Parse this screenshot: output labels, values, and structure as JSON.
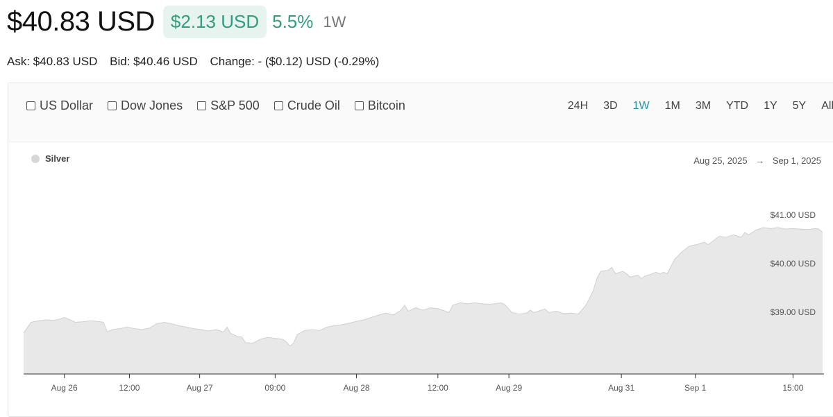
{
  "header": {
    "price": "$40.83 USD",
    "change_value": "$2.13 USD",
    "change_percent": "5.5%",
    "period": "1W"
  },
  "quote": {
    "ask": "Ask: $40.83 USD",
    "bid": "Bid: $40.46 USD",
    "change": "Change: - ($0.12) USD (-0.29%)"
  },
  "compare": [
    "US Dollar",
    "Dow Jones",
    "S&P 500",
    "Crude Oil",
    "Bitcoin"
  ],
  "ranges": [
    "24H",
    "3D",
    "1W",
    "1M",
    "3M",
    "YTD",
    "1Y",
    "5Y",
    "All"
  ],
  "active_range": "1W",
  "legend": {
    "label": "Silver"
  },
  "date_range": {
    "start": "Aug 25, 2025",
    "arrow": "→",
    "end": "Sep 1, 2025"
  },
  "colors": {
    "accent": "#2f9e7d",
    "pill_bg": "#e7f3ef",
    "active_range": "#2a8fa8",
    "area_fill": "#e8e8e8",
    "area_stroke": "#d0d0d0"
  },
  "chart_data": {
    "type": "area",
    "series": [
      {
        "name": "Silver",
        "points": [
          [
            0,
            38.73
          ],
          [
            0.01,
            38.95
          ],
          [
            0.02,
            38.98
          ],
          [
            0.03,
            39.0
          ],
          [
            0.04,
            38.99
          ],
          [
            0.05,
            39.02
          ],
          [
            0.055,
            39.05
          ],
          [
            0.06,
            39.02
          ],
          [
            0.07,
            38.95
          ],
          [
            0.08,
            38.96
          ],
          [
            0.09,
            38.98
          ],
          [
            0.1,
            38.97
          ],
          [
            0.108,
            38.95
          ],
          [
            0.113,
            38.75
          ],
          [
            0.12,
            38.8
          ],
          [
            0.13,
            38.82
          ],
          [
            0.14,
            38.85
          ],
          [
            0.15,
            38.82
          ],
          [
            0.16,
            38.8
          ],
          [
            0.17,
            38.83
          ],
          [
            0.18,
            38.92
          ],
          [
            0.19,
            38.95
          ],
          [
            0.2,
            38.92
          ],
          [
            0.21,
            38.88
          ],
          [
            0.22,
            38.85
          ],
          [
            0.23,
            38.82
          ],
          [
            0.24,
            38.8
          ],
          [
            0.25,
            38.77
          ],
          [
            0.26,
            38.8
          ],
          [
            0.27,
            38.75
          ],
          [
            0.275,
            38.85
          ],
          [
            0.28,
            38.72
          ],
          [
            0.29,
            38.65
          ],
          [
            0.295,
            38.65
          ],
          [
            0.3,
            38.53
          ],
          [
            0.31,
            38.52
          ],
          [
            0.32,
            38.6
          ],
          [
            0.33,
            38.64
          ],
          [
            0.34,
            38.62
          ],
          [
            0.35,
            38.6
          ],
          [
            0.355,
            38.55
          ],
          [
            0.36,
            38.46
          ],
          [
            0.365,
            38.52
          ],
          [
            0.37,
            38.7
          ],
          [
            0.38,
            38.78
          ],
          [
            0.39,
            38.8
          ],
          [
            0.4,
            38.78
          ],
          [
            0.41,
            38.85
          ],
          [
            0.42,
            38.88
          ],
          [
            0.43,
            38.9
          ],
          [
            0.44,
            38.93
          ],
          [
            0.45,
            38.97
          ],
          [
            0.46,
            39.0
          ],
          [
            0.47,
            39.05
          ],
          [
            0.48,
            39.1
          ],
          [
            0.49,
            39.14
          ],
          [
            0.5,
            39.1
          ],
          [
            0.51,
            39.2
          ],
          [
            0.515,
            39.3
          ],
          [
            0.52,
            39.18
          ],
          [
            0.53,
            39.25
          ],
          [
            0.54,
            39.2
          ],
          [
            0.55,
            39.25
          ],
          [
            0.56,
            39.23
          ],
          [
            0.57,
            39.18
          ],
          [
            0.575,
            39.15
          ],
          [
            0.58,
            39.3
          ],
          [
            0.59,
            39.35
          ],
          [
            0.6,
            39.33
          ],
          [
            0.61,
            39.35
          ],
          [
            0.62,
            39.33
          ],
          [
            0.63,
            39.32
          ],
          [
            0.64,
            39.34
          ],
          [
            0.645,
            39.35
          ],
          [
            0.65,
            39.32
          ],
          [
            0.66,
            39.15
          ],
          [
            0.67,
            39.12
          ],
          [
            0.68,
            39.14
          ],
          [
            0.685,
            39.2
          ],
          [
            0.69,
            39.15
          ],
          [
            0.7,
            39.2
          ],
          [
            0.705,
            39.22
          ],
          [
            0.71,
            39.15
          ],
          [
            0.72,
            39.18
          ],
          [
            0.73,
            39.13
          ],
          [
            0.74,
            39.14
          ],
          [
            0.75,
            39.12
          ],
          [
            0.76,
            39.3
          ],
          [
            0.765,
            39.45
          ],
          [
            0.77,
            39.6
          ],
          [
            0.775,
            39.85
          ],
          [
            0.78,
            40.0
          ],
          [
            0.79,
            40.02
          ],
          [
            0.795,
            40.08
          ],
          [
            0.8,
            39.95
          ],
          [
            0.81,
            40.0
          ],
          [
            0.815,
            39.95
          ],
          [
            0.82,
            39.88
          ],
          [
            0.83,
            39.92
          ],
          [
            0.835,
            39.85
          ],
          [
            0.84,
            39.9
          ],
          [
            0.85,
            39.95
          ],
          [
            0.855,
            39.98
          ],
          [
            0.86,
            39.95
          ],
          [
            0.865,
            39.98
          ],
          [
            0.87,
            39.95
          ],
          [
            0.875,
            40.1
          ],
          [
            0.88,
            40.25
          ],
          [
            0.89,
            40.4
          ],
          [
            0.9,
            40.52
          ],
          [
            0.91,
            40.55
          ],
          [
            0.92,
            40.6
          ],
          [
            0.925,
            40.55
          ],
          [
            0.93,
            40.6
          ],
          [
            0.94,
            40.72
          ],
          [
            0.95,
            40.7
          ],
          [
            0.955,
            40.73
          ],
          [
            0.96,
            40.75
          ],
          [
            0.97,
            40.7
          ],
          [
            0.975,
            40.8
          ],
          [
            0.98,
            40.75
          ],
          [
            0.99,
            40.85
          ],
          [
            1.0,
            40.9
          ],
          [
            1.01,
            40.88
          ],
          [
            1.02,
            40.9
          ],
          [
            1.03,
            40.87
          ],
          [
            1.04,
            40.88
          ],
          [
            1.05,
            40.87
          ],
          [
            1.06,
            40.86
          ],
          [
            1.07,
            40.88
          ],
          [
            1.075,
            40.87
          ],
          [
            1.08,
            40.8
          ]
        ]
      }
    ],
    "y_ticks": [
      {
        "value": 41,
        "label": "$41.00 USD"
      },
      {
        "value": 40,
        "label": "$40.00 USD"
      },
      {
        "value": 39,
        "label": "$39.00 USD"
      }
    ],
    "x_ticks": [
      {
        "t": 0.055,
        "label": "Aug 26"
      },
      {
        "t": 0.143,
        "label": "12:00"
      },
      {
        "t": 0.238,
        "label": "Aug 27"
      },
      {
        "t": 0.34,
        "label": "09:00"
      },
      {
        "t": 0.45,
        "label": "Aug 28"
      },
      {
        "t": 0.56,
        "label": "12:00"
      },
      {
        "t": 0.656,
        "label": "Aug 29"
      },
      {
        "t": 0.808,
        "label": "Aug 31"
      },
      {
        "t": 0.908,
        "label": "Sep 1"
      },
      {
        "t": 1.04,
        "label": "15:00"
      }
    ],
    "ylim": [
      38.0,
      41.35
    ],
    "grid": false,
    "legend_position": "top-left"
  }
}
